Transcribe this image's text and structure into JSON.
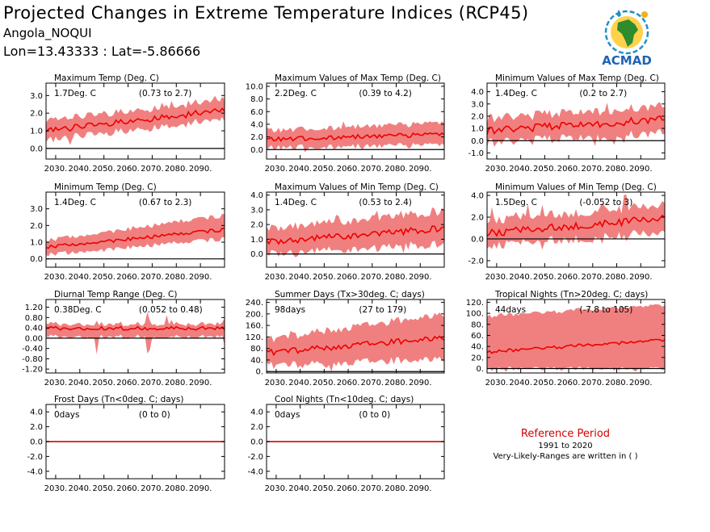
{
  "header": {
    "title": "Projected Changes in Extreme Temperature Indices (RCP45)",
    "location": "Angola_NOQUI",
    "coords": "Lon=13.43333 : Lat=-5.86666"
  },
  "logo": {
    "text": "ACMAD",
    "icon": "africa-map-logo"
  },
  "colors": {
    "band": "#f08080",
    "line": "#ee0000",
    "zero": "#000000",
    "ref_title": "#d40000"
  },
  "reference": {
    "title": "Reference Period",
    "years": "1991 to 2020",
    "note": "Very-Likely-Ranges are written in ( )"
  },
  "x_ticks": [
    "2030.",
    "2040.",
    "2050.",
    "2060.",
    "2070.",
    "2080.",
    "2090."
  ],
  "chart_data": [
    {
      "type": "line",
      "title": "Maximum Temp (Deg. C)",
      "change": "1.7Deg. C",
      "range": "(0.73 to 2.7)",
      "xlim": [
        2026,
        2100
      ],
      "ylim": [
        -0.6,
        3.7
      ],
      "yticks": [
        {
          "v": 3.0,
          "t": "3.0"
        },
        {
          "v": 2.0,
          "t": "2.0"
        },
        {
          "v": 1.0,
          "t": "1.0"
        },
        {
          "v": 0.0,
          "t": "0.0"
        }
      ],
      "mean": [
        1.0,
        2.15
      ],
      "lo": [
        0.45,
        1.65
      ],
      "hi": [
        1.55,
        2.75
      ],
      "noise": 0.18,
      "spikes": 0.3
    },
    {
      "type": "line",
      "title": "Maximum Values of Max Temp (Deg. C)",
      "change": "2.2Deg. C",
      "range": "(0.39 to 4.2)",
      "xlim": [
        2026,
        2100
      ],
      "ylim": [
        -1.5,
        10.5
      ],
      "yticks": [
        {
          "v": 10,
          "t": "10.0"
        },
        {
          "v": 8,
          "t": "8.0"
        },
        {
          "v": 6,
          "t": "6.0"
        },
        {
          "v": 4,
          "t": "4.0"
        },
        {
          "v": 2,
          "t": "2.0"
        },
        {
          "v": 0,
          "t": "0.0"
        }
      ],
      "mean": [
        1.6,
        2.4
      ],
      "lo": [
        0.3,
        0.7
      ],
      "hi": [
        3.0,
        4.2
      ],
      "noise": 0.35,
      "spikes": 1.4
    },
    {
      "type": "line",
      "title": "Minimum Values of Max Temp (Deg. C)",
      "change": "1.4Deg. C",
      "range": "(0.2 to 2.7)",
      "xlim": [
        2026,
        2100
      ],
      "ylim": [
        -1.5,
        4.7
      ],
      "yticks": [
        {
          "v": 4,
          "t": "4.0"
        },
        {
          "v": 3,
          "t": "3.0"
        },
        {
          "v": 2,
          "t": "2.0"
        },
        {
          "v": 1,
          "t": "1.0"
        },
        {
          "v": 0,
          "t": "0.0"
        },
        {
          "v": -1,
          "t": "-1.0"
        }
      ],
      "mean": [
        0.8,
        1.75
      ],
      "lo": [
        -0.2,
        0.6
      ],
      "hi": [
        1.8,
        2.8
      ],
      "noise": 0.3,
      "spikes": 0.9
    },
    {
      "type": "line",
      "title": "Minimum Temp (Deg. C)",
      "change": "1.4Deg. C",
      "range": "(0.67 to 2.3)",
      "xlim": [
        2026,
        2100
      ],
      "ylim": [
        -0.5,
        4.0
      ],
      "yticks": [
        {
          "v": 3,
          "t": "3.0"
        },
        {
          "v": 2,
          "t": "2.0"
        },
        {
          "v": 1,
          "t": "1.0"
        },
        {
          "v": 0,
          "t": "0.0"
        }
      ],
      "mean": [
        0.7,
        1.75
      ],
      "lo": [
        0.25,
        1.2
      ],
      "hi": [
        1.1,
        2.6
      ],
      "noise": 0.1,
      "spikes": 0.15
    },
    {
      "type": "line",
      "title": "Maximum Values of Min Temp (Deg. C)",
      "change": "1.4Deg. C",
      "range": "(0.53 to 2.4)",
      "xlim": [
        2026,
        2100
      ],
      "ylim": [
        -0.9,
        4.2
      ],
      "yticks": [
        {
          "v": 4,
          "t": "4.0"
        },
        {
          "v": 3,
          "t": "3.0"
        },
        {
          "v": 2,
          "t": "2.0"
        },
        {
          "v": 1,
          "t": "1.0"
        },
        {
          "v": 0,
          "t": "0.0"
        }
      ],
      "mean": [
        0.8,
        1.75
      ],
      "lo": [
        0.0,
        0.7
      ],
      "hi": [
        1.7,
        2.9
      ],
      "noise": 0.22,
      "spikes": 0.6
    },
    {
      "type": "line",
      "title": "Minimum Values of Min Temp (Deg. C)",
      "change": "1.5Deg. C",
      "range": "(-0.052 to 3)",
      "xlim": [
        2026,
        2100
      ],
      "ylim": [
        -2.6,
        4.3
      ],
      "yticks": [
        {
          "v": 4,
          "t": "4.0"
        },
        {
          "v": 2,
          "t": "2.0"
        },
        {
          "v": 0,
          "t": "0.0"
        },
        {
          "v": -2,
          "t": "-2.0"
        }
      ],
      "mean": [
        0.5,
        1.9
      ],
      "lo": [
        -0.6,
        0.6
      ],
      "hi": [
        1.7,
        3.1
      ],
      "noise": 0.35,
      "spikes": 1.2
    },
    {
      "type": "line",
      "title": "Diurnal Temp Range (Deg. C)",
      "change": "0.38Deg. C",
      "range": "(0.052 to 0.48)",
      "xlim": [
        2026,
        2100
      ],
      "ylim": [
        -1.35,
        1.5
      ],
      "yticks": [
        {
          "v": 1.2,
          "t": "1.20"
        },
        {
          "v": 0.8,
          "t": "0.80"
        },
        {
          "v": 0.4,
          "t": "0.40"
        },
        {
          "v": 0.0,
          "t": "0.00"
        },
        {
          "v": -0.4,
          "t": "-0.40"
        },
        {
          "v": -0.8,
          "t": "-0.80"
        },
        {
          "v": -1.2,
          "t": "-1.20"
        }
      ],
      "mean": [
        0.38,
        0.38
      ],
      "lo": [
        0.05,
        0.05
      ],
      "hi": [
        0.55,
        0.55
      ],
      "noise": 0.07,
      "spikes": 0.55
    },
    {
      "type": "line",
      "title": "Summer Days (Tx>30deg. C; days)",
      "change": "98days",
      "range": "(27 to 179)",
      "xlim": [
        2026,
        2100
      ],
      "ylim": [
        -5,
        250
      ],
      "yticks": [
        {
          "v": 240,
          "t": "240."
        },
        {
          "v": 200,
          "t": "200."
        },
        {
          "v": 160,
          "t": "160."
        },
        {
          "v": 120,
          "t": "120."
        },
        {
          "v": 80,
          "t": "80."
        },
        {
          "v": 40,
          "t": "40."
        },
        {
          "v": 0,
          "t": "0."
        }
      ],
      "mean": [
        65,
        118
      ],
      "lo": [
        20,
        45
      ],
      "hi": [
        110,
        200
      ],
      "noise": 10,
      "spikes": 20
    },
    {
      "type": "line",
      "title": "Tropical Nights (Tn>20deg. C; days)",
      "change": "44days",
      "range": "(-7.8 to 105)",
      "xlim": [
        2026,
        2100
      ],
      "ylim": [
        -8,
        125
      ],
      "yticks": [
        {
          "v": 120,
          "t": "120."
        },
        {
          "v": 100,
          "t": "100."
        },
        {
          "v": 80,
          "t": "80."
        },
        {
          "v": 60,
          "t": "60."
        },
        {
          "v": 40,
          "t": "40."
        },
        {
          "v": 20,
          "t": "20."
        },
        {
          "v": 0,
          "t": "0."
        }
      ],
      "mean": [
        30,
        52
      ],
      "lo": [
        0,
        0
      ],
      "hi": [
        95,
        115
      ],
      "noise": 3,
      "spikes": 5
    },
    {
      "type": "line",
      "title": "Frost Days (Tn<0deg. C; days)",
      "change": "0days",
      "range": "(0 to 0)",
      "xlim": [
        2026,
        2100
      ],
      "ylim": [
        -5,
        5
      ],
      "yticks": [
        {
          "v": 4,
          "t": "4.0"
        },
        {
          "v": 2,
          "t": "2.0"
        },
        {
          "v": 0,
          "t": "0.0"
        },
        {
          "v": -2,
          "t": "-2.0"
        },
        {
          "v": -4,
          "t": "-4.0"
        }
      ],
      "mean": [
        0,
        0
      ],
      "lo": [
        0,
        0
      ],
      "hi": [
        0,
        0
      ],
      "noise": 0,
      "spikes": 0
    },
    {
      "type": "line",
      "title": "Cool Nights (Tn<10deg. C; days)",
      "change": "0days",
      "range": "(0 to 0)",
      "xlim": [
        2026,
        2100
      ],
      "ylim": [
        -5,
        5
      ],
      "yticks": [
        {
          "v": 4,
          "t": "4.0"
        },
        {
          "v": 2,
          "t": "2.0"
        },
        {
          "v": 0,
          "t": "0.0"
        },
        {
          "v": -2,
          "t": "-2.0"
        },
        {
          "v": -4,
          "t": "-4.0"
        }
      ],
      "mean": [
        0,
        0
      ],
      "lo": [
        0,
        0
      ],
      "hi": [
        0,
        0
      ],
      "noise": 0,
      "spikes": 0
    }
  ]
}
